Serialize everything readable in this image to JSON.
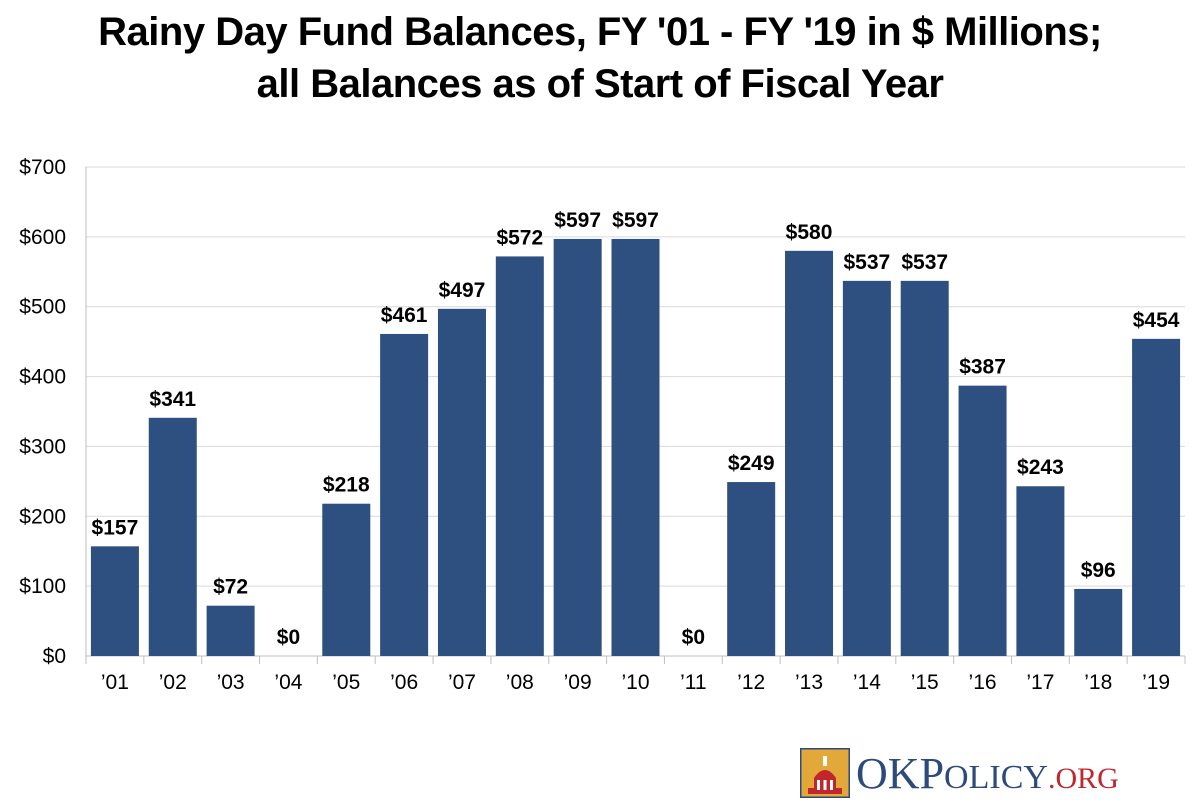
{
  "chart_data": {
    "type": "bar",
    "title_lines": [
      "Rainy Day Fund Balances, FY '01 - FY '19 in $ Millions;",
      "all Balances as of Start of Fiscal Year"
    ],
    "categories": [
      "’01",
      "’02",
      "’03",
      "’04",
      "’05",
      "’06",
      "’07",
      "’08",
      "’09",
      "’10",
      "’11",
      "’12",
      "’13",
      "’14",
      "’15",
      "’16",
      "’17",
      "’18",
      "’19"
    ],
    "values": [
      157,
      341,
      72,
      0,
      218,
      461,
      497,
      572,
      597,
      597,
      0,
      249,
      580,
      537,
      537,
      387,
      243,
      96,
      454
    ],
    "value_labels": [
      "$157",
      "$341",
      "$72",
      "$0",
      "$218",
      "$461",
      "$497",
      "$572",
      "$597",
      "$597",
      "$0",
      "$249",
      "$580",
      "$537",
      "$537",
      "$387",
      "$243",
      "$96",
      "$454"
    ],
    "ylim": [
      0,
      700
    ],
    "yticks": [
      0,
      100,
      200,
      300,
      400,
      500,
      600,
      700
    ],
    "ytick_labels": [
      "$0",
      "$100",
      "$200",
      "$300",
      "$400",
      "$500",
      "$600",
      "$700"
    ],
    "xlabel": "",
    "ylabel": "",
    "grid": true,
    "bar_color": "#2e5080"
  },
  "logo": {
    "text_o": "O",
    "text_k": "K",
    "text_p": "P",
    "text_olicy": "OLICY",
    "text_org": ".ORG",
    "colors": {
      "navy": "#2c4a7a",
      "red": "#c0272d",
      "gold": "#e3a83a"
    }
  }
}
